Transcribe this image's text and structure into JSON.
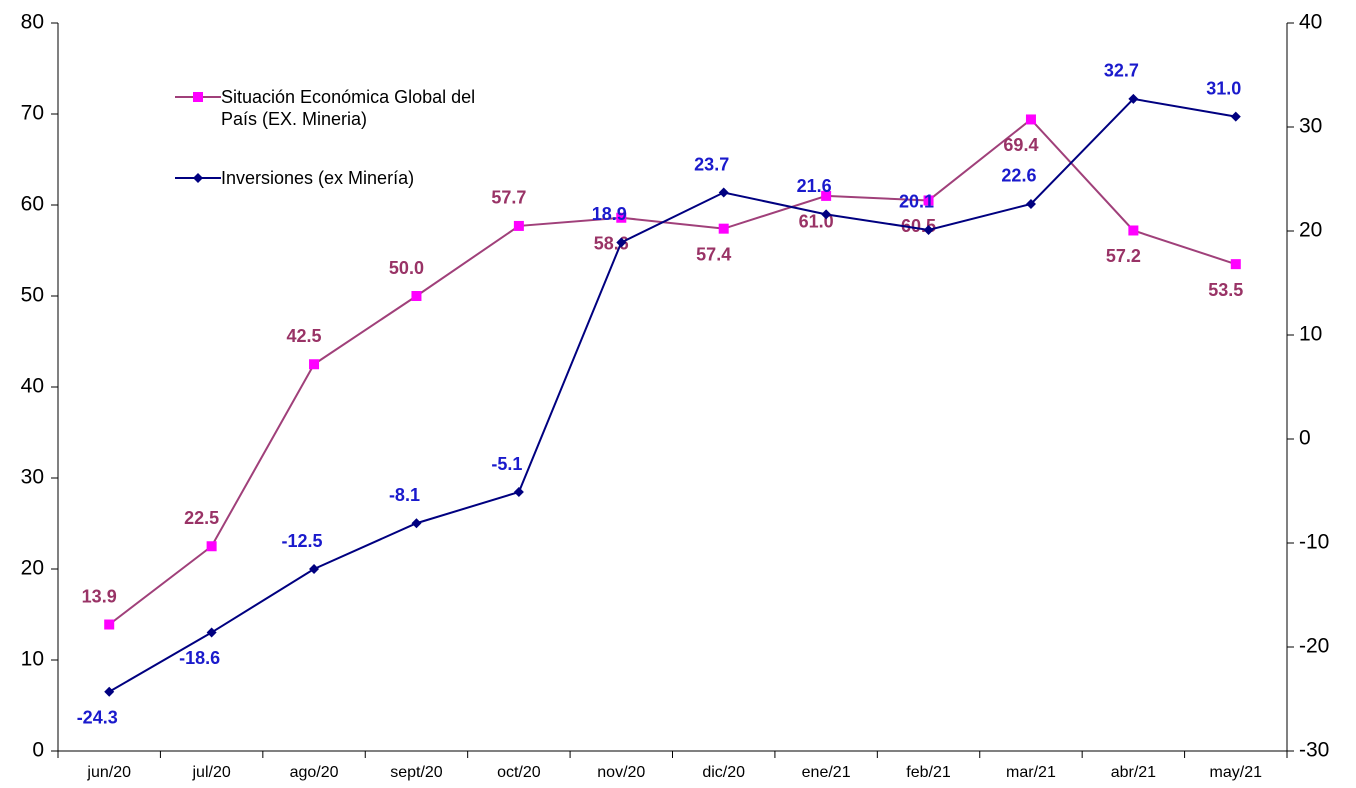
{
  "chart_data": {
    "type": "line",
    "categories": [
      "jun/20",
      "jul/20",
      "ago/20",
      "sept/20",
      "oct/20",
      "nov/20",
      "dic/20",
      "ene/21",
      "feb/21",
      "mar/21",
      "abr/21",
      "may/21"
    ],
    "series": [
      {
        "name": "Situación Económica Global del País (EX. Mineria)",
        "color": "#a0407a",
        "marker_color": "#ff00ff",
        "label_color": "#993366",
        "marker": "square",
        "values": [
          13.9,
          22.5,
          42.5,
          50.0,
          57.7,
          58.6,
          57.4,
          61.0,
          60.5,
          69.4,
          57.2,
          53.5
        ],
        "value_labels": [
          "13.9",
          "22.5",
          "42.5",
          "50.0",
          "57.7",
          "58.6",
          "57.4",
          "61.0",
          "60.5",
          "69.4",
          "57.2",
          "53.5"
        ]
      },
      {
        "name": "Inversiones (ex Minería)",
        "color": "#000080",
        "marker_color": "#000080",
        "label_color": "#1a1acc",
        "marker": "diamond",
        "axis": "y2",
        "values": [
          -24.3,
          -18.6,
          -12.5,
          -8.1,
          -5.1,
          18.9,
          23.7,
          21.6,
          20.1,
          22.6,
          32.7,
          31.0
        ],
        "value_labels": [
          "-24.3",
          "-18.6",
          "-12.5",
          "-8.1",
          "-5.1",
          "18.9",
          "23.7",
          "21.6",
          "20.1",
          "22.6",
          "32.7",
          "31.0"
        ]
      }
    ],
    "ylim": [
      0,
      80
    ],
    "yticks": [
      0,
      10,
      20,
      30,
      40,
      50,
      60,
      70,
      80
    ],
    "y2lim": [
      -30,
      40
    ],
    "y2ticks": [
      -30,
      -20,
      -10,
      0,
      10,
      20,
      30,
      40
    ]
  }
}
